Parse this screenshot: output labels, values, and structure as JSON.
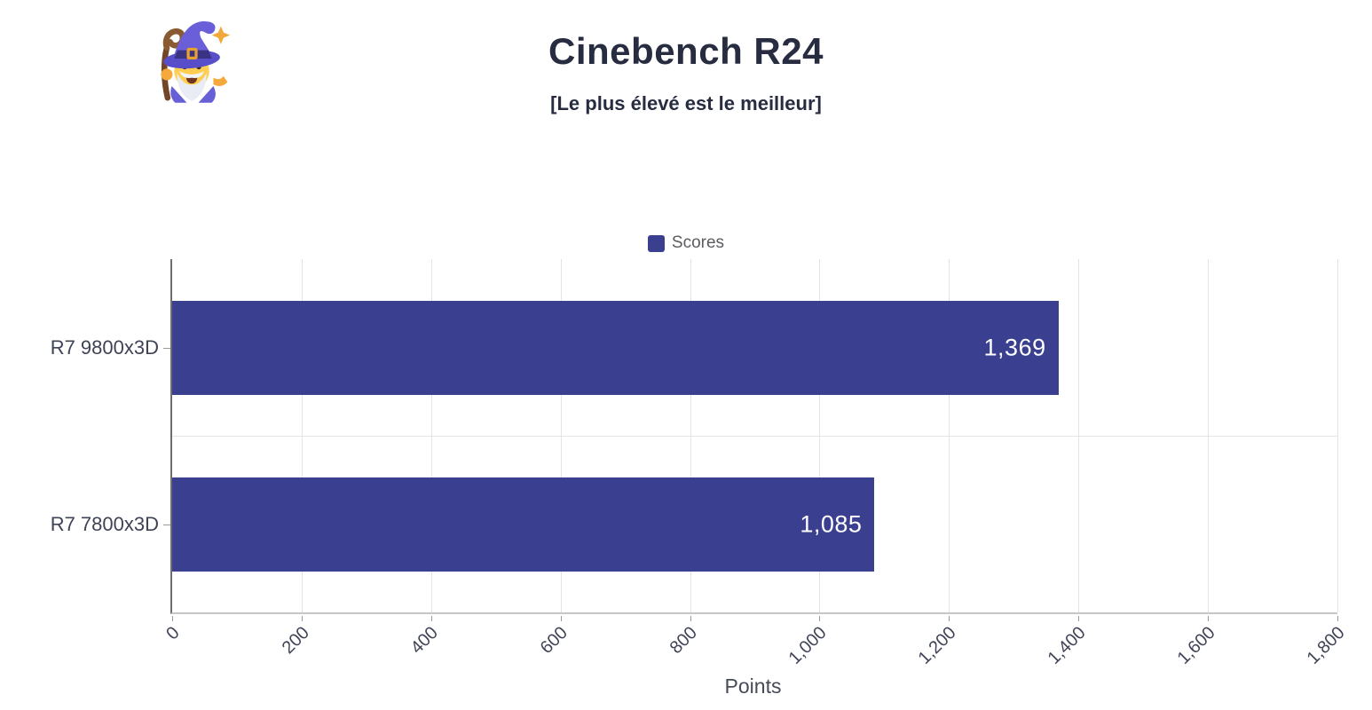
{
  "header": {
    "logo_name": "wizard-mascot",
    "title": "Cinebench R24",
    "subtitle": "[Le plus élevé est le meilleur]"
  },
  "legend": {
    "items": [
      {
        "label": "Scores",
        "color": "#3b3f90"
      }
    ]
  },
  "chart_data": {
    "type": "bar",
    "orientation": "horizontal",
    "title": "Cinebench R24",
    "subtitle": "[Le plus élevé est le meilleur]",
    "categories": [
      "R7 9800x3D",
      "R7 7800x3D"
    ],
    "series": [
      {
        "name": "Scores",
        "color": "#3b3f90",
        "values": [
          1369,
          1085
        ],
        "value_labels": [
          "1,369",
          "1,085"
        ]
      }
    ],
    "xlabel": "Points",
    "xlim": [
      0,
      1800
    ],
    "xticks": [
      0,
      200,
      400,
      600,
      800,
      1000,
      1200,
      1400,
      1600,
      1800
    ],
    "xtick_labels": [
      "0",
      "200",
      "400",
      "600",
      "800",
      "1,000",
      "1,200",
      "1,400",
      "1,600",
      "1,800"
    ],
    "grid": true,
    "legend_position": "top-center",
    "colors": {
      "bar": "#3b3f90",
      "value_label": "#ffffff",
      "gridline": "#e4e4e4",
      "axis_line": "#6e6e6e",
      "bottom_line": "#c6c6c6",
      "tick_mark": "#9a9a9a",
      "tick_text": "#3f4356",
      "category_text": "#3f4356",
      "legend_text": "#5b5c60",
      "title_text": "#272c41"
    }
  }
}
